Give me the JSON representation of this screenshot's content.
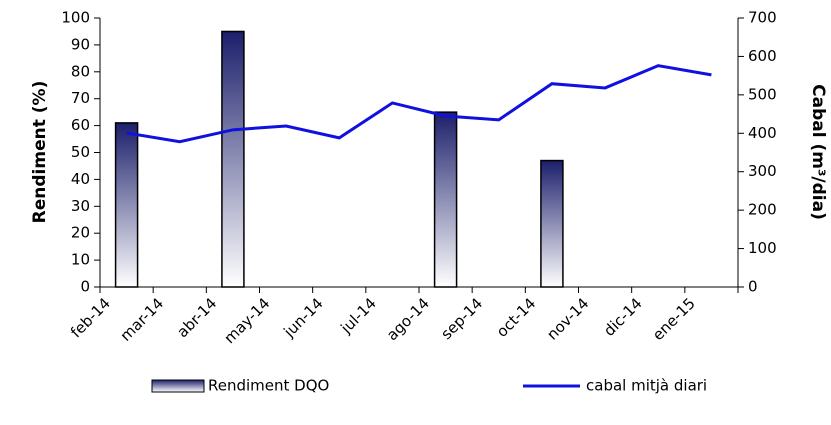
{
  "chart_data": {
    "type": "bar_line",
    "y_label": "Rendiment (%)",
    "y2_label": "Cabal (m³/dia)",
    "categories": [
      "feb-14",
      "mar-14",
      "abr-14",
      "may-14",
      "jun-14",
      "jul-14",
      "ago-14",
      "sep-14",
      "oct-14",
      "nov-14",
      "dic-14",
      "ene-15"
    ],
    "series": [
      {
        "name": "Rendiment DQO",
        "type": "bar",
        "color": "#1c1f6b",
        "values": [
          61,
          null,
          95,
          null,
          null,
          null,
          65,
          null,
          47,
          null,
          null,
          null
        ]
      },
      {
        "name": "cabal mitjà diari",
        "type": "line",
        "axis": "y2",
        "color": "#1010e0",
        "values": [
          401,
          378,
          409,
          419,
          388,
          479,
          445,
          435,
          529,
          518,
          576,
          552
        ]
      }
    ],
    "ylim": [
      0,
      100
    ],
    "yticks": [
      0,
      10,
      20,
      30,
      40,
      50,
      60,
      70,
      80,
      90,
      100
    ],
    "y2lim": [
      0,
      700
    ],
    "y2ticks": [
      0,
      100,
      200,
      300,
      400,
      500,
      600,
      700
    ]
  }
}
